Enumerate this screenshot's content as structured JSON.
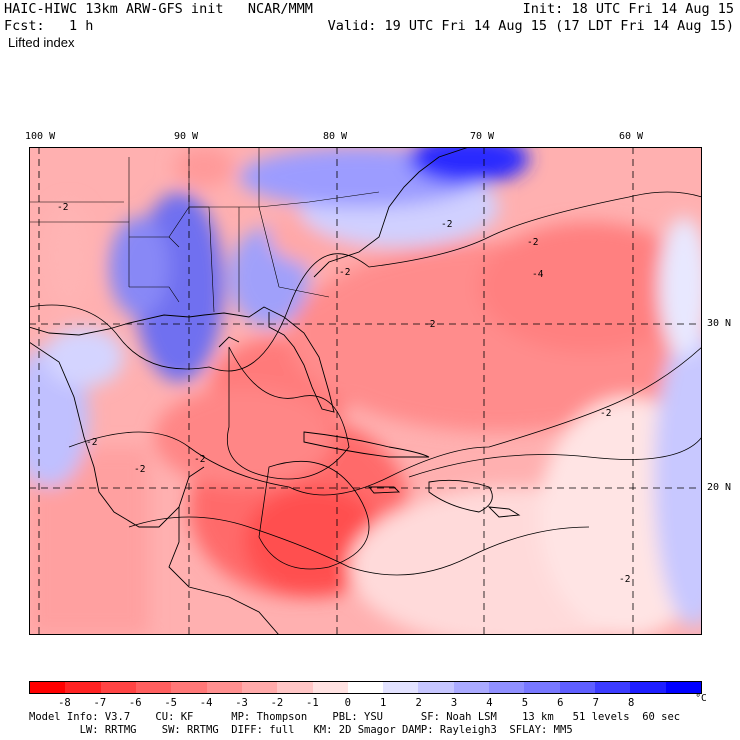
{
  "header": {
    "title": "HAIC-HIWC 13km ARW-GFS init   NCAR/MMM",
    "fcst": "Fcst:   1 h",
    "init": "Init: 18 UTC Fri 14 Aug 15",
    "valid": "Valid: 19 UTC Fri 14 Aug 15 (17 LDT Fri 14 Aug 15)",
    "field": "Lifted index"
  },
  "map": {
    "lon_labels": [
      "100 W",
      "90 W",
      "80 W",
      "70 W",
      "60 W"
    ],
    "lat_labels": [
      "30 N",
      "20 N"
    ],
    "contour_labels": [
      "-2",
      "-2",
      "-2",
      "-2",
      "-2",
      "-2",
      "-4",
      "-2",
      "-2",
      "-2",
      "-2"
    ]
  },
  "colorbar": {
    "ticks": [
      "-8",
      "-7",
      "-6",
      "-5",
      "-4",
      "-3",
      "-2",
      "-1",
      "0",
      "1",
      "2",
      "3",
      "4",
      "5",
      "6",
      "7",
      "8"
    ],
    "unit": "°C",
    "colors": [
      "#ff0000",
      "#ff2222",
      "#ff4444",
      "#ff5f5f",
      "#ff7878",
      "#ff9090",
      "#ffaaaa",
      "#ffc6c6",
      "#ffe2e2",
      "#ffffff",
      "#e2e2ff",
      "#c6c6ff",
      "#aaaaff",
      "#9090ff",
      "#7878ff",
      "#5f5fff",
      "#3c3cff",
      "#1e1eff",
      "#0000ff"
    ]
  },
  "footer": {
    "line1": "Model Info: V3.7    CU: KF      MP: Thompson    PBL: YSU      SF: Noah LSM    13 km   51 levels  60 sec",
    "line2": "        LW: RRTMG    SW: RRTMG  DIFF: full   KM: 2D Smagor DAMP: Rayleigh3  SFLAY: MM5"
  }
}
